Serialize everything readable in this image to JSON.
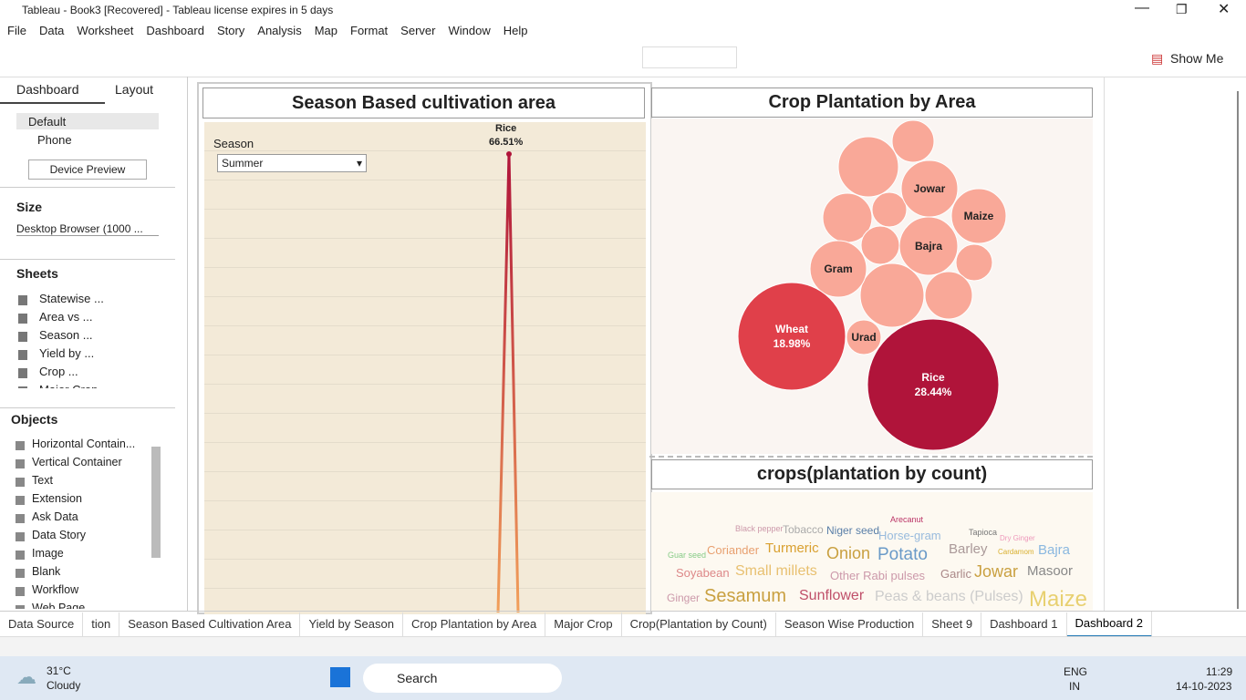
{
  "window": {
    "title": "Tableau - Book3 [Recovered] - Tableau license expires in 5 days"
  },
  "menu": [
    "File",
    "Data",
    "Worksheet",
    "Dashboard",
    "Story",
    "Analysis",
    "Map",
    "Format",
    "Server",
    "Window",
    "Help"
  ],
  "toolbar": {
    "show_me": "Show Me"
  },
  "side_panel": {
    "tabs": [
      "Dashboard",
      "Layout"
    ],
    "devices": [
      "Default",
      "Phone"
    ],
    "device_preview": "Device Preview",
    "size_heading": "Size",
    "size_value": "Desktop Browser (1000 ...",
    "sheets_heading": "Sheets",
    "sheets": [
      "Statewise ...",
      "Area vs ...",
      "Season ...",
      "Yield by ...",
      "Crop ...",
      "Major Crop"
    ],
    "objects_heading": "Objects",
    "objects": [
      "Horizontal Contain...",
      "Vertical Container",
      "Text",
      "Extension",
      "Ask Data",
      "Data Story",
      "Image",
      "Blank",
      "Workflow",
      "Web Page"
    ]
  },
  "dashboard": {
    "season_chart": {
      "title": "Season Based cultivation area",
      "filter_label": "Season",
      "filter_value": "Summer",
      "peak_label": "Rice",
      "peak_value": "66.51%"
    },
    "bubble_chart": {
      "title": "Crop Plantation by Area",
      "bubbles": [
        {
          "label": "Jowar"
        },
        {
          "label": "Maize"
        },
        {
          "label": "Bajra"
        },
        {
          "label": "Gram"
        },
        {
          "label": "Urad"
        },
        {
          "label": "Wheat",
          "value": "18.98%"
        },
        {
          "label": "Rice",
          "value": "28.44%"
        }
      ]
    },
    "word_cloud": {
      "title": "crops(plantation by count)",
      "words": [
        "Black pepper",
        "Tobacco",
        "Niger seed",
        "Arecanut",
        "Tapioca",
        "Dry Ginger",
        "Guar seed",
        "Coriander",
        "Turmeric",
        "Horse-gram",
        "Onion",
        "Potato",
        "Barley",
        "Cardamom",
        "Bajra",
        "Soyabean",
        "Small millets",
        "Other Rabi pulses",
        "Garlic",
        "Jowar",
        "Masoor",
        "Ginger",
        "Sesamum",
        "Sunflower",
        "Peas & beans (Pulses)",
        "Maize"
      ]
    }
  },
  "sheet_tabs": [
    "Data Source",
    "tion",
    "Season Based Cultivation Area",
    "Yield by Season",
    "Crop Plantation by Area",
    "Major Crop",
    "Crop(Plantation by Count)",
    "Season Wise Production",
    "Sheet 9",
    "Dashboard 1",
    "Dashboard 2"
  ],
  "taskbar": {
    "temperature": "31°C",
    "weather": "Cloudy",
    "search": "Search",
    "language": "ENG",
    "region": "IN",
    "time": "11:29",
    "date": "14-10-2023"
  }
}
